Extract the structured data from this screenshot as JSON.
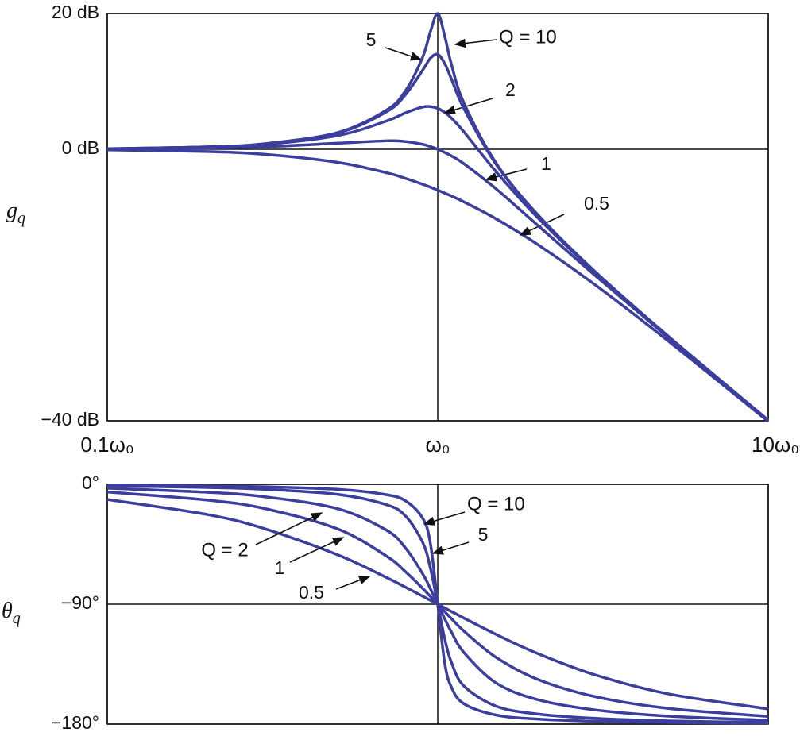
{
  "chart_data": [
    {
      "type": "line",
      "y_label": {
        "symbol": "g",
        "subscript": "q"
      },
      "log_x": true,
      "grid": true,
      "tick_labels": true,
      "xlim": [
        0.1,
        10
      ],
      "xticks": [
        {
          "value": 0.1,
          "label": "0.1ω₀"
        },
        {
          "value": 1,
          "label": "ω₀"
        },
        {
          "value": 10,
          "label": "10ω₀"
        }
      ],
      "ylim": [
        -40,
        20
      ],
      "yticks": [
        {
          "value": 20,
          "label": "20 dB"
        },
        {
          "value": 0,
          "label": "0 dB"
        },
        {
          "value": -40,
          "label": "−40 dB"
        }
      ],
      "x": [
        0.1,
        0.2,
        0.3,
        0.5,
        0.7,
        0.8,
        0.9,
        0.95,
        1,
        1.05,
        1.1,
        1.2,
        1.5,
        2,
        3,
        5,
        10
      ],
      "series": [
        {
          "name": "0.5",
          "color": "#3b3e9c",
          "values": [
            -0.09,
            -0.34,
            -0.75,
            -1.94,
            -3.46,
            -4.3,
            -5.15,
            -5.59,
            -6.02,
            -6.46,
            -6.89,
            -7.75,
            -10.24,
            -13.98,
            -20,
            -28.3,
            -40.09
          ]
        },
        {
          "name": "1",
          "color": "#3b3e9c",
          "values": [
            0.04,
            0.17,
            0.37,
            0.9,
            1.25,
            1.14,
            0.73,
            0.4,
            0,
            -0.47,
            -0.98,
            -2.13,
            -5.81,
            -11.14,
            -18.63,
            -27.79,
            -39.96
          ]
        },
        {
          "name": "2",
          "color": "#3b3e9c",
          "values": [
            0.08,
            0.31,
            0.7,
            2.04,
            4.17,
            5.38,
            6.22,
            6.29,
            6.02,
            5.44,
            4.6,
            2.57,
            -3.27,
            -10,
            -18.21,
            -27.65,
            -39.92
          ]
        },
        {
          "name": "5",
          "color": "#3b3e9c",
          "values": [
            0.09,
            0.35,
            0.8,
            2.42,
            5.53,
            8.09,
            11.64,
            13.41,
            13.98,
            12.63,
            10.34,
            6,
            -2.18,
            -9.62,
            -18.09,
            -27.61,
            -39.92
          ]
        },
        {
          "name": "Q = 10",
          "color": "#3b3e9c",
          "values": [
            0.09,
            0.35,
            0.82,
            2.48,
            5.77,
            8.67,
            13.55,
            17.32,
            20,
            16.67,
            12.5,
            6.82,
            -2,
            -9.56,
            -18.07,
            -27.61,
            -39.91
          ]
        }
      ]
    },
    {
      "type": "line",
      "y_label": {
        "symbol": "θ",
        "subscript": "q"
      },
      "log_x": true,
      "grid": true,
      "tick_labels": false,
      "xlim": [
        0.1,
        10
      ],
      "xticks": [
        0.1,
        1,
        10
      ],
      "ylim": [
        -180,
        0
      ],
      "yticks": [
        {
          "value": 0,
          "label": "0°"
        },
        {
          "value": -90,
          "label": "−90°"
        },
        {
          "value": -180,
          "label": "−180°"
        }
      ],
      "x": [
        0.1,
        0.2,
        0.3,
        0.5,
        0.7,
        0.8,
        0.9,
        0.95,
        1,
        1.05,
        1.1,
        1.2,
        1.5,
        2,
        3,
        5,
        10
      ],
      "series": [
        {
          "name": "0.5",
          "color": "#3b3e9c",
          "values": [
            -11.42,
            -22.62,
            -33.4,
            -53.13,
            -69.98,
            -77.32,
            -83.97,
            -87.06,
            -90,
            -92.79,
            -95.45,
            -100.39,
            -112.62,
            -126.87,
            -143.13,
            -157.38,
            -168.58
          ]
        },
        {
          "name": "1",
          "color": "#3b3e9c",
          "values": [
            -5.77,
            -11.77,
            -18.25,
            -33.69,
            -53.92,
            -65.77,
            -78.08,
            -84.14,
            -90,
            -95.58,
            -100.81,
            -110.14,
            -129.81,
            -146.31,
            -159.44,
            -168.23,
            -174.23
          ]
        },
        {
          "name": "Q = 2",
          "color": "#3b3e9c",
          "values": [
            -2.89,
            -5.95,
            -9.36,
            -18.43,
            -34.46,
            -48.01,
            -67.11,
            -78.4,
            -90,
            -101.05,
            -110.9,
            -126.25,
            -149.04,
            -161.57,
            -169.38,
            -174.05,
            -177.11
          ]
        },
        {
          "name": "5",
          "color": "#3b3e9c",
          "values": [
            -1.16,
            -2.39,
            -3.77,
            -7.59,
            -15.35,
            -23.96,
            -43.45,
            -62.84,
            -90,
            -116.01,
            -133.67,
            -151.39,
            -166.5,
            -172.41,
            -175.71,
            -177.61,
            -178.84
          ]
        },
        {
          "name": "Q = 10",
          "color": "#3b3e9c",
          "values": [
            -0.58,
            -1.19,
            -1.89,
            -3.81,
            -7.82,
            -12.53,
            -25.35,
            -44.26,
            -90,
            -134.31,
            -152.35,
            -164.74,
            -173.16,
            -176.19,
            -177.85,
            -178.81,
            -179.42
          ]
        }
      ]
    }
  ]
}
